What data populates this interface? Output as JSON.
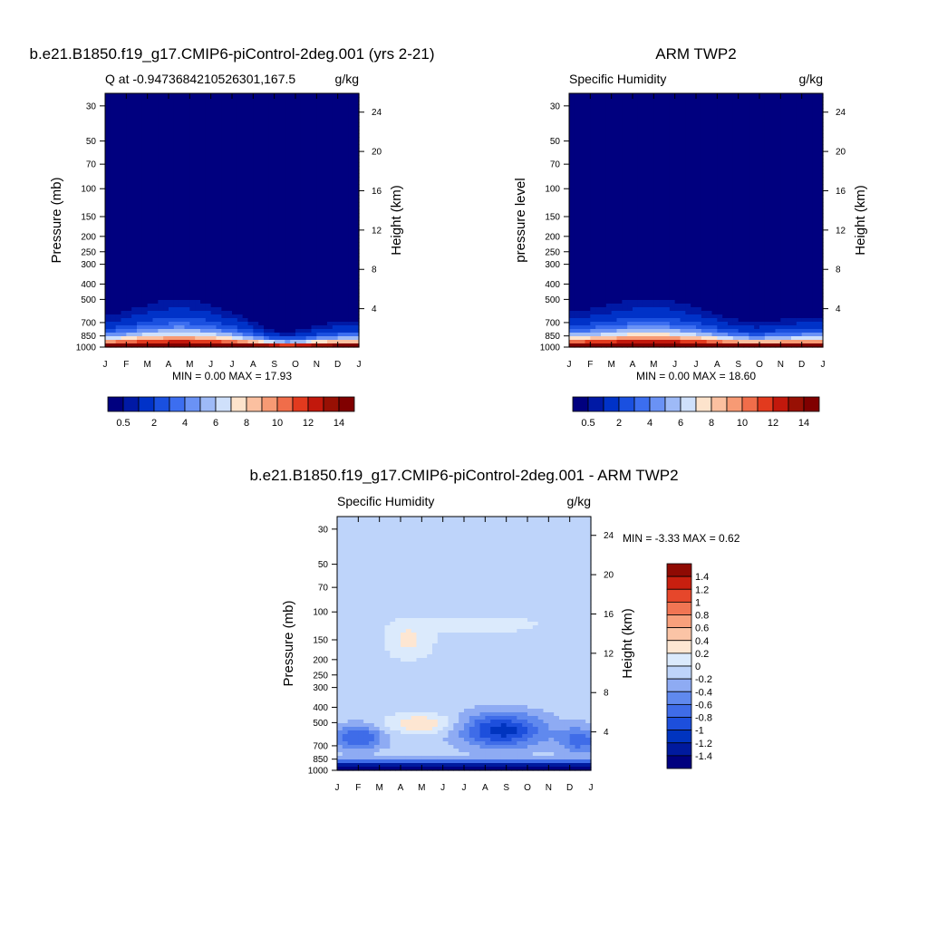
{
  "chart_data": [
    {
      "type": "contour",
      "title": "b.e21.B1850.f19_g17.CMIP6-piControl-2deg.001 (yrs 2-21)",
      "left_string": "Q at -0.9473684210526301,167.5",
      "right_string": "g/kg",
      "ylabel": "Pressure (mb)",
      "ylabel_right": "Height (km)",
      "xticks": [
        "J",
        "F",
        "M",
        "A",
        "M",
        "J",
        "J",
        "A",
        "S",
        "O",
        "N",
        "D",
        "J"
      ],
      "yticks": [
        30,
        50,
        70,
        100,
        150,
        200,
        250,
        300,
        400,
        500,
        700,
        850,
        1000
      ],
      "ylim": [
        1000,
        25
      ],
      "height_ticks": [
        4,
        8,
        12,
        16,
        20,
        24
      ],
      "stats": "MIN =   0.00 MAX =  17.93",
      "levels": [
        0.5,
        1,
        2,
        3,
        4,
        5,
        6,
        7,
        8,
        9,
        10,
        11,
        12,
        13,
        14
      ],
      "colorbar_labels": [
        "0.5",
        "2",
        "4",
        "6",
        "8",
        "10",
        "12",
        "14"
      ],
      "colors": [
        "#00007f",
        "#0019a5",
        "#0032c8",
        "#1a50e0",
        "#3c6ef0",
        "#6a92f5",
        "#9ebaf7",
        "#cfe0fb",
        "#fde3cc",
        "#fbc0a0",
        "#f79a74",
        "#f06d4a",
        "#e23a1e",
        "#c2180c",
        "#981004",
        "#800000"
      ]
    },
    {
      "type": "contour",
      "title": "ARM TWP2",
      "left_string": "Specific Humidity",
      "right_string": "g/kg",
      "ylabel": "pressure level",
      "ylabel_right": "Height (km)",
      "xticks": [
        "J",
        "F",
        "M",
        "A",
        "M",
        "J",
        "J",
        "A",
        "S",
        "O",
        "N",
        "D",
        "J"
      ],
      "yticks": [
        30,
        50,
        70,
        100,
        150,
        200,
        250,
        300,
        400,
        500,
        700,
        850,
        1000
      ],
      "ylim": [
        1000,
        25
      ],
      "height_ticks": [
        4,
        8,
        12,
        16,
        20,
        24
      ],
      "stats": "MIN =   0.00 MAX =  18.60",
      "levels": [
        0.5,
        1,
        2,
        3,
        4,
        5,
        6,
        7,
        8,
        9,
        10,
        11,
        12,
        13,
        14
      ],
      "colorbar_labels": [
        "0.5",
        "2",
        "4",
        "6",
        "8",
        "10",
        "12",
        "14"
      ],
      "colors": [
        "#00007f",
        "#0019a5",
        "#0032c8",
        "#1a50e0",
        "#3c6ef0",
        "#6a92f5",
        "#9ebaf7",
        "#cfe0fb",
        "#fde3cc",
        "#fbc0a0",
        "#f79a74",
        "#f06d4a",
        "#e23a1e",
        "#c2180c",
        "#981004",
        "#800000"
      ]
    },
    {
      "type": "contour",
      "title": "b.e21.B1850.f19_g17.CMIP6-piControl-2deg.001 - ARM TWP2",
      "left_string": "Specific Humidity",
      "right_string": "g/kg",
      "ylabel": "Pressure (mb)",
      "ylabel_right": "Height (km)",
      "xticks": [
        "J",
        "F",
        "M",
        "A",
        "M",
        "J",
        "J",
        "A",
        "S",
        "O",
        "N",
        "D",
        "J"
      ],
      "yticks": [
        30,
        50,
        70,
        100,
        150,
        200,
        250,
        300,
        400,
        500,
        700,
        850,
        1000
      ],
      "ylim": [
        1000,
        25
      ],
      "height_ticks": [
        4,
        8,
        12,
        16,
        20,
        24
      ],
      "stats": "MIN =  -3.33 MAX =   0.62",
      "levels": [
        -1.4,
        -1.2,
        -1,
        -0.8,
        -0.6,
        -0.4,
        -0.2,
        0,
        0.2,
        0.4,
        0.6,
        0.8,
        1,
        1.2,
        1.4
      ],
      "colorbar_labels": [
        "1.4",
        "1.2",
        "1",
        "0.8",
        "0.6",
        "0.4",
        "0.2",
        "0",
        "-0.2",
        "-0.4",
        "-0.6",
        "-0.8",
        "-1",
        "-1.2",
        "-1.4"
      ],
      "colors": [
        "#00007f",
        "#001a9e",
        "#0034bf",
        "#1d4fdc",
        "#3f6ce8",
        "#6089ee",
        "#8eabf3",
        "#bed4fa",
        "#dbeafc",
        "#fde6d2",
        "#fbc4a6",
        "#f8a07c",
        "#f17553",
        "#e6472b",
        "#c81f0f",
        "#8f0a03"
      ]
    }
  ]
}
